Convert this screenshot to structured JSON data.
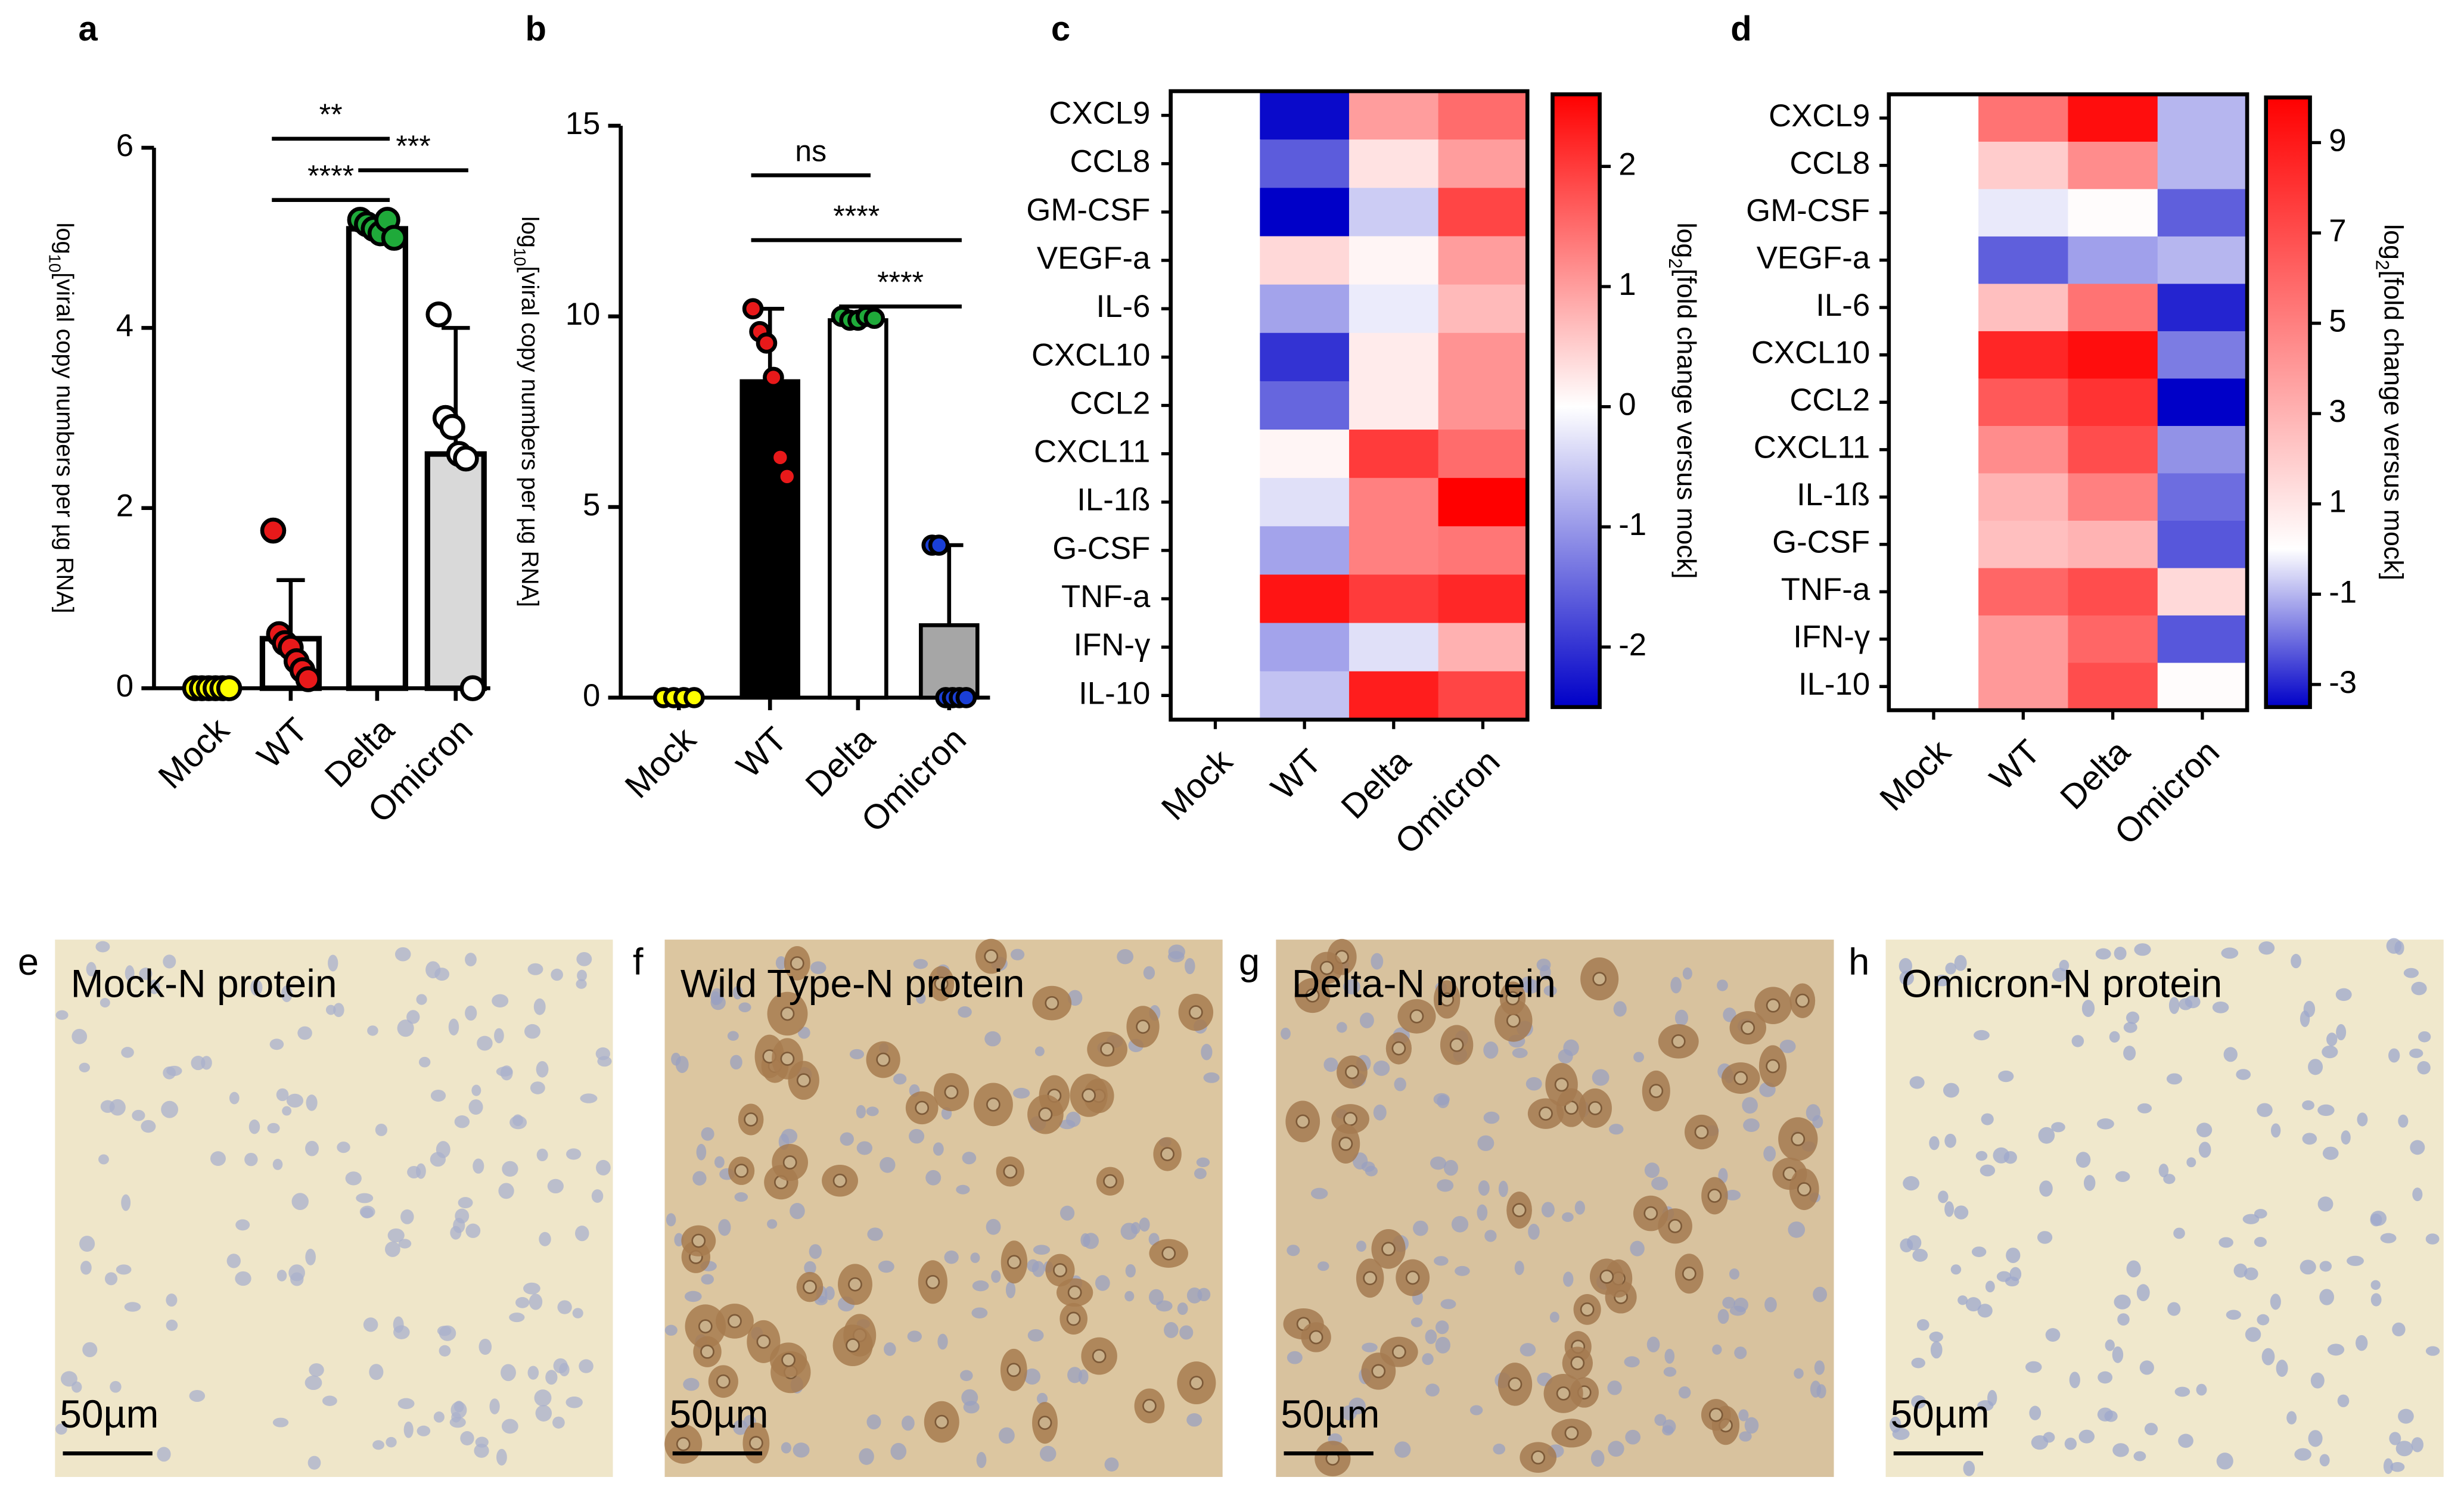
{
  "chart_data": [
    {
      "type": "bar",
      "panel": "a",
      "ylabel_prefix": "log",
      "ylabel_sub": "10",
      "ylabel": "[viral copy numbers per µg RNA]",
      "categories": [
        "Mock",
        "WT",
        "Delta",
        "Omicron"
      ],
      "values": [
        0,
        0.55,
        5.1,
        2.6
      ],
      "errors": [
        0,
        0.65,
        0.1,
        1.4
      ],
      "points": [
        [
          0,
          0,
          0,
          0,
          0,
          0
        ],
        [
          1.75,
          0.6,
          0.5,
          0.45,
          0.3,
          0.2,
          0.1
        ],
        [
          5.2,
          5.15,
          5.1,
          5.05,
          5.2,
          5.0
        ],
        [
          4.15,
          3.0,
          2.9,
          2.6,
          2.55,
          0
        ]
      ],
      "bar_colors": [
        "#ffffff",
        "#ffffff",
        "#ffffff",
        "#d9d9d9"
      ],
      "point_colors": [
        "#ffff00",
        "#e8191a",
        "#1faa3a",
        "#ffffff"
      ],
      "ylim": [
        0,
        6
      ],
      "yticks": [
        0,
        2,
        4,
        6
      ],
      "annotations": [
        {
          "text": "**",
          "from": 1,
          "to": 2,
          "y": 6.1
        },
        {
          "text": "****",
          "from": 1,
          "to": 2,
          "y": 5.42
        },
        {
          "text": "***",
          "from": 2,
          "to": 3,
          "y": 5.75
        }
      ]
    },
    {
      "type": "bar",
      "panel": "b",
      "ylabel_prefix": "log",
      "ylabel_sub": "10",
      "ylabel": "[viral copy numbers per µg RNA]",
      "categories": [
        "Mock",
        "WT",
        "Delta",
        "Omicron"
      ],
      "values": [
        0,
        8.3,
        9.9,
        1.9
      ],
      "errors": [
        0,
        1.9,
        0.1,
        2.1
      ],
      "points": [
        [
          0,
          0,
          0,
          0
        ],
        [
          10.2,
          9.6,
          9.3,
          8.4,
          6.3,
          5.8
        ],
        [
          10,
          9.9,
          9.9,
          10,
          9.95
        ],
        [
          4,
          4,
          0,
          0,
          0,
          0
        ]
      ],
      "bar_colors": [
        "#ffffff",
        "#000000",
        "#ffffff",
        "#a6a6a6"
      ],
      "point_colors": [
        "#ffff00",
        "#e8191a",
        "#1faa3a",
        "#1a3fd6"
      ],
      "ylim": [
        0,
        15
      ],
      "yticks": [
        0,
        5,
        10,
        15
      ],
      "annotations": [
        {
          "text": "ns",
          "from": 1,
          "to": 2,
          "y": 13.7
        },
        {
          "text": "****",
          "from": 1,
          "to": 3,
          "y": 12.0
        },
        {
          "text": "****",
          "from": 2,
          "to": 3,
          "y": 10.26
        }
      ]
    },
    {
      "type": "heatmap",
      "panel": "c",
      "columns": [
        "Mock",
        "WT",
        "Delta",
        "Omicron"
      ],
      "rows": [
        "CXCL9",
        "CCL8",
        "GM-CSF",
        "VEGF-a",
        "IL-6",
        "CXCL10",
        "CCL2",
        "CXCL11",
        "IL-1ß",
        "G-CSF",
        "TNF-a",
        "IFN-γ",
        "IL-10"
      ],
      "values": [
        [
          0,
          -2.4,
          1.0,
          1.5
        ],
        [
          0,
          -1.6,
          0.3,
          1.0
        ],
        [
          0,
          -2.5,
          -0.5,
          1.9
        ],
        [
          0,
          0.4,
          0.1,
          1.0
        ],
        [
          0,
          -0.9,
          -0.2,
          0.7
        ],
        [
          0,
          -2.0,
          0.2,
          1.1
        ],
        [
          0,
          -1.5,
          0.2,
          1.1
        ],
        [
          0,
          0.1,
          2.0,
          1.5
        ],
        [
          0,
          -0.3,
          1.3,
          2.6
        ],
        [
          0,
          -0.9,
          1.3,
          1.4
        ],
        [
          0,
          2.4,
          2.0,
          2.2
        ],
        [
          0,
          -0.9,
          -0.3,
          0.8
        ],
        [
          0,
          -0.6,
          2.3,
          1.9
        ]
      ],
      "clim": [
        -2.5,
        2.6
      ],
      "cticks": [
        -2,
        -1,
        0,
        1,
        2
      ],
      "cmap": [
        "#0000c8",
        "#ffffff",
        "#ff0000"
      ],
      "clabel_prefix": "log",
      "clabel_sub": "2",
      "clabel": "[fold change versus mock]"
    },
    {
      "type": "heatmap",
      "panel": "d",
      "columns": [
        "Mock",
        "WT",
        "Delta",
        "Omicron"
      ],
      "rows": [
        "CXCL9",
        "CCL8",
        "GM-CSF",
        "VEGF-a",
        "IL-6",
        "CXCL10",
        "CCL2",
        "CXCL11",
        "IL-1ß",
        "G-CSF",
        "TNF-a",
        "IFN-γ",
        "IL-10"
      ],
      "values": [
        [
          0,
          5.5,
          9.5,
          -1.0
        ],
        [
          0,
          2.0,
          4.5,
          -1.0
        ],
        [
          0,
          -0.3,
          0.1,
          -2.2
        ],
        [
          0,
          -2.2,
          -1.3,
          -1.0
        ],
        [
          0,
          2.5,
          5.5,
          -3.0
        ],
        [
          0,
          8.5,
          9.5,
          -1.8
        ],
        [
          0,
          6.5,
          8,
          -3.5
        ],
        [
          0,
          4.5,
          7,
          -1.5
        ],
        [
          0,
          3,
          5,
          -2.0
        ],
        [
          0,
          2.5,
          3,
          -2.3
        ],
        [
          0,
          6,
          7,
          1.5
        ],
        [
          0,
          4,
          6,
          -2.3
        ],
        [
          0,
          4,
          7,
          0.1
        ]
      ],
      "clim": [
        -3.5,
        10
      ],
      "cticks": [
        -3,
        -1,
        1,
        3,
        5,
        7,
        9
      ],
      "cmap": [
        "#0000c8",
        "#ffffff",
        "#ff0000"
      ],
      "clabel_prefix": "log",
      "clabel_sub": "2",
      "clabel": "[fold change versus mock]"
    }
  ],
  "images": [
    {
      "panel": "e",
      "title": "Mock-N protein",
      "scale": "50µm",
      "background": "#efe6c9",
      "cell_color": "#a9b0cc",
      "stained": false
    },
    {
      "panel": "f",
      "title": "Wild Type-N protein",
      "scale": "50µm",
      "background": "#dcc6a0",
      "cell_color": "#a77b4f",
      "stained": true
    },
    {
      "panel": "g",
      "title": "Delta-N protein",
      "scale": "50µm",
      "background": "#d8c29e",
      "cell_color": "#a47a50",
      "stained": true
    },
    {
      "panel": "h",
      "title": "Omicron-N protein",
      "scale": "50µm",
      "background": "#f0e8cc",
      "cell_color": "#9ea8cc",
      "stained": false
    }
  ]
}
